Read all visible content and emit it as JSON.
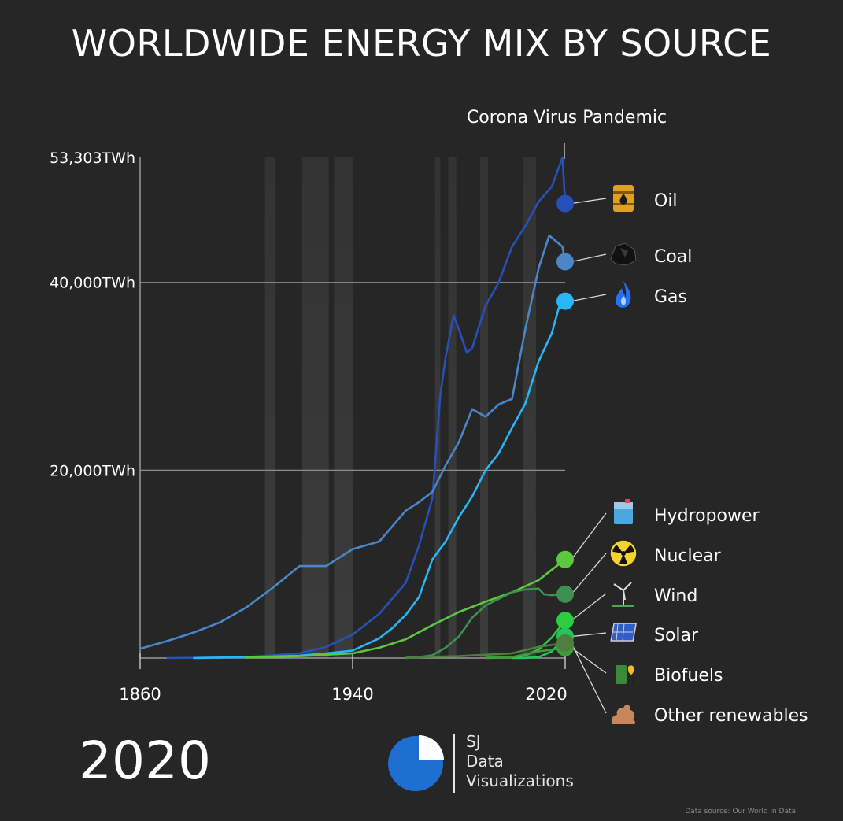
{
  "title": "WORLDWIDE ENERGY MIX BY SOURCE",
  "current_year": "2020",
  "annotation": "Corona Virus Pandemic",
  "logo": {
    "line1": "SJ",
    "line2": "Data",
    "line3": "Visualizations"
  },
  "source_note": "Data source: Our World in Data",
  "colors": {
    "background": "#262626",
    "oil": "#2750b8",
    "coal": "#4a86c8",
    "gas": "#29b6f6",
    "hydropower": "#5cc83e",
    "nuclear": "#3e8f52",
    "wind": "#2ecc40",
    "solar": "#27c45a",
    "biofuels": "#3f9a3a",
    "other_renewables": "#4f7f3f"
  },
  "chart_data": {
    "type": "line",
    "x_ticks": [
      1860,
      1940,
      2020
    ],
    "x_tick_labels": [
      "1860",
      "1940",
      "2020"
    ],
    "xlim": [
      1860,
      2020
    ],
    "y_ticks": [
      20000,
      40000,
      53303
    ],
    "y_tick_labels": [
      "20,000TWh",
      "40,000TWh",
      "53,303TWh"
    ],
    "ylim": [
      0,
      53303
    ],
    "grid": "horizontal",
    "series": [
      {
        "name": "Oil",
        "icon": "oil-barrel-icon",
        "color": "#2750b8",
        "x": [
          1870,
          1900,
          1920,
          1930,
          1940,
          1950,
          1960,
          1965,
          1970,
          1973,
          1975,
          1978,
          1980,
          1983,
          1985,
          1990,
          1995,
          2000,
          2005,
          2010,
          2015,
          2019,
          2020
        ],
        "y": [
          0,
          100,
          500,
          1200,
          2500,
          4700,
          8000,
          12000,
          17000,
          28000,
          32000,
          36500,
          35000,
          32500,
          33000,
          37500,
          40000,
          43800,
          46000,
          48600,
          50200,
          53303,
          48400
        ]
      },
      {
        "name": "Coal",
        "icon": "coal-lump-icon",
        "color": "#4a86c8",
        "x": [
          1860,
          1870,
          1880,
          1890,
          1900,
          1910,
          1920,
          1930,
          1940,
          1950,
          1960,
          1965,
          1970,
          1975,
          1980,
          1985,
          1990,
          1995,
          2000,
          2005,
          2010,
          2014,
          2019,
          2020
        ],
        "y": [
          1000,
          1800,
          2700,
          3800,
          5400,
          7500,
          9800,
          9800,
          11600,
          12400,
          15700,
          16600,
          17700,
          20500,
          23000,
          26500,
          25700,
          27000,
          27600,
          35000,
          41500,
          45000,
          43800,
          42200
        ]
      },
      {
        "name": "Gas",
        "icon": "gas-flame-icon",
        "color": "#29b6f6",
        "x": [
          1880,
          1900,
          1920,
          1930,
          1940,
          1950,
          1955,
          1960,
          1965,
          1970,
          1975,
          1980,
          1985,
          1990,
          1995,
          2000,
          2005,
          2010,
          2015,
          2019,
          2020
        ],
        "y": [
          0,
          100,
          250,
          500,
          800,
          2100,
          3200,
          4600,
          6500,
          10500,
          12400,
          15000,
          17200,
          20000,
          21800,
          24500,
          27100,
          31600,
          34600,
          38700,
          38000
        ]
      },
      {
        "name": "Hydropower",
        "icon": "dam-icon",
        "color": "#5cc83e",
        "x": [
          1900,
          1920,
          1940,
          1950,
          1960,
          1970,
          1980,
          1990,
          2000,
          2010,
          2015,
          2020
        ],
        "y": [
          50,
          200,
          500,
          1100,
          2000,
          3500,
          4900,
          6000,
          7000,
          8300,
          9400,
          10500
        ]
      },
      {
        "name": "Nuclear",
        "icon": "radiation-icon",
        "color": "#3e8f52",
        "x": [
          1960,
          1965,
          1970,
          1975,
          1980,
          1985,
          1990,
          1995,
          2000,
          2005,
          2010,
          2012,
          2015,
          2020
        ],
        "y": [
          0,
          100,
          300,
          1100,
          2300,
          4300,
          5600,
          6300,
          7000,
          7300,
          7400,
          6800,
          6700,
          6800
        ]
      },
      {
        "name": "Wind",
        "icon": "wind-turbine-icon",
        "color": "#2ecc40",
        "x": [
          1990,
          2000,
          2005,
          2010,
          2015,
          2020
        ],
        "y": [
          0,
          80,
          280,
          900,
          2200,
          4000
        ]
      },
      {
        "name": "Solar",
        "icon": "solar-panel-icon",
        "color": "#27c45a",
        "x": [
          2000,
          2005,
          2010,
          2015,
          2020
        ],
        "y": [
          0,
          20,
          100,
          700,
          2300
        ]
      },
      {
        "name": "Biofuels",
        "icon": "biofuel-pump-icon",
        "color": "#3f9a3a",
        "x": [
          1990,
          2000,
          2010,
          2020
        ],
        "y": [
          50,
          100,
          700,
          1100
        ]
      },
      {
        "name": "Other renewables",
        "icon": "other-renewables-icon",
        "color": "#4f7f3f",
        "x": [
          1960,
          1980,
          2000,
          2010,
          2020
        ],
        "y": [
          50,
          200,
          500,
          1200,
          1600
        ]
      }
    ],
    "shaded_years": [
      [
        1907,
        1911
      ],
      [
        1921,
        1931
      ],
      [
        1933,
        1940
      ],
      [
        1971,
        1973
      ],
      [
        1976,
        1979
      ],
      [
        1988,
        1991
      ],
      [
        2004,
        2009
      ]
    ]
  }
}
